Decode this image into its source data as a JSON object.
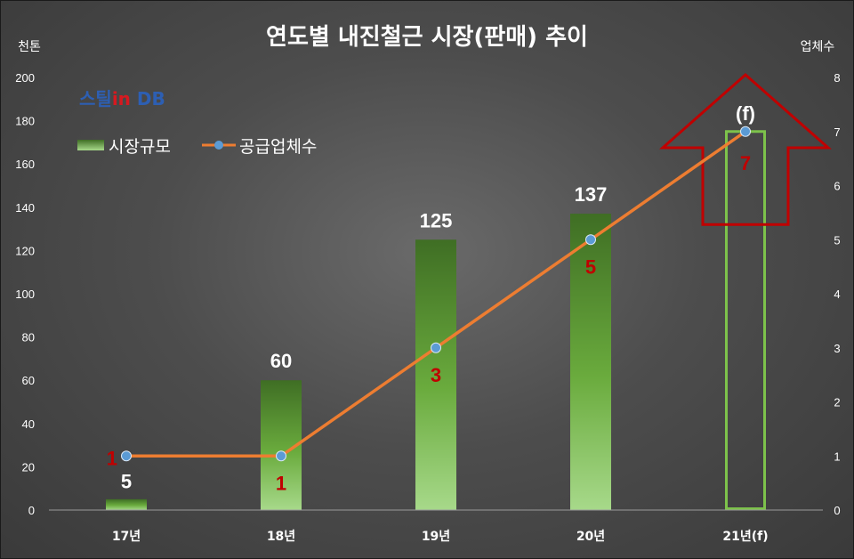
{
  "chart_data": {
    "type": "bar",
    "title": "연도별 내진철근 시장(판매) 추이",
    "left_axis_unit": "천톤",
    "right_axis_unit": "업체수",
    "categories": [
      "17년",
      "18년",
      "19년",
      "20년",
      "21년(f)"
    ],
    "ylim": [
      0,
      200
    ],
    "y_ticks": [
      0,
      20,
      40,
      60,
      80,
      100,
      120,
      140,
      160,
      180,
      200
    ],
    "y2lim": [
      0,
      8
    ],
    "y2_ticks": [
      0,
      1,
      2,
      3,
      4,
      5,
      6,
      7,
      8
    ],
    "series": [
      {
        "name": "시장규모",
        "type": "bar",
        "axis": "left",
        "values": [
          5,
          60,
          125,
          137,
          175
        ],
        "labels": [
          "5",
          "60",
          "125",
          "137",
          ""
        ],
        "forecast_last": true,
        "color": "#7dc24b"
      },
      {
        "name": "공급업체수",
        "type": "line",
        "axis": "right",
        "values": [
          1,
          1,
          3,
          5,
          7
        ],
        "labels": [
          "1",
          "1",
          "3",
          "5",
          "7"
        ],
        "line_color": "#ed7d31",
        "marker_color": "#5b9bd5",
        "label_color": "#c00000"
      }
    ],
    "forecast_annotation": "(f)",
    "arrow_color": "#c00000",
    "legend_position": "top-left",
    "grid": false
  },
  "watermark": {
    "part1": "스틸",
    "part2": "in",
    "part3": " DB"
  }
}
